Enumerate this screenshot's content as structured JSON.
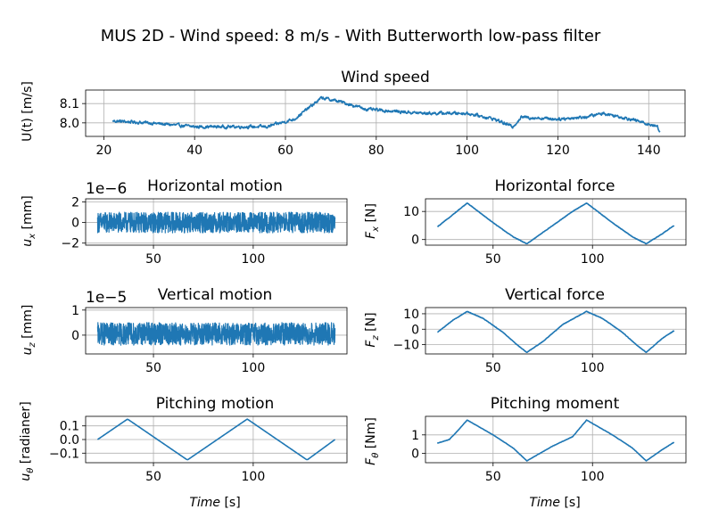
{
  "figure_title": "MUS 2D - Wind speed: 8 m/s - With Butterworth low-pass filter",
  "colors": {
    "series": "#1f77b4",
    "grid": "#b0b0b0"
  },
  "chart_data": [
    {
      "id": "wind",
      "type": "line",
      "title": "Wind speed",
      "xlabel": "",
      "ylabel": "U(t) [m/s]",
      "xlim": [
        16,
        148
      ],
      "ylim": [
        7.93,
        8.17
      ],
      "xticks": [
        20,
        40,
        60,
        80,
        100,
        120,
        140
      ],
      "yticks": [
        8.0,
        8.1
      ],
      "ytick_labels": [
        "8.0",
        "8.1"
      ],
      "grid": true,
      "x_range": [
        22,
        142.5
      ],
      "noise_amplitude": 0.014,
      "key_points": [
        [
          22,
          8.01
        ],
        [
          30,
          8.0
        ],
        [
          40,
          7.98
        ],
        [
          50,
          7.98
        ],
        [
          56,
          7.98
        ],
        [
          62,
          8.02
        ],
        [
          68,
          8.13
        ],
        [
          72,
          8.11
        ],
        [
          78,
          8.07
        ],
        [
          90,
          8.05
        ],
        [
          100,
          8.05
        ],
        [
          106,
          8.02
        ],
        [
          110,
          7.98
        ],
        [
          112,
          8.03
        ],
        [
          120,
          8.02
        ],
        [
          126,
          8.03
        ],
        [
          130,
          8.05
        ],
        [
          136,
          8.02
        ],
        [
          142,
          7.98
        ],
        [
          142.5,
          7.95
        ]
      ]
    },
    {
      "id": "ux",
      "type": "line",
      "title": "Horizontal motion",
      "scale_note": "1e−6",
      "xlabel": "",
      "ylabel": "u_x [mm]",
      "xlim": [
        16,
        147
      ],
      "ylim": [
        -2.2,
        2.3
      ],
      "xticks": [
        50,
        100
      ],
      "yticks": [
        -2,
        0,
        2
      ],
      "ytick_labels": [
        "−2",
        "0",
        "2"
      ],
      "grid": true,
      "x_range": [
        22,
        141
      ],
      "noise_amplitude": 1.0,
      "key_points": [
        [
          22,
          0
        ],
        [
          141,
          0
        ]
      ]
    },
    {
      "id": "fx",
      "type": "line",
      "title": "Horizontal force",
      "xlabel": "",
      "ylabel": "F_x [N]",
      "xlim": [
        16,
        147
      ],
      "ylim": [
        -2,
        14.5
      ],
      "xticks": [
        50,
        100
      ],
      "yticks": [
        0,
        10
      ],
      "ytick_labels": [
        "0",
        "10"
      ],
      "grid": true,
      "x_range": [
        22,
        141
      ],
      "noise_amplitude": 0.15,
      "key_points": [
        [
          22,
          4.5
        ],
        [
          30,
          9
        ],
        [
          37,
          13
        ],
        [
          50,
          6
        ],
        [
          60,
          1
        ],
        [
          67,
          -1.5
        ],
        [
          80,
          5
        ],
        [
          90,
          10
        ],
        [
          97,
          13
        ],
        [
          110,
          6
        ],
        [
          120,
          1
        ],
        [
          127,
          -1.5
        ],
        [
          135,
          2
        ],
        [
          141,
          5
        ]
      ]
    },
    {
      "id": "uz",
      "type": "line",
      "title": "Vertical motion",
      "scale_note": "1e−5",
      "xlabel": "",
      "ylabel": "u_z [mm]",
      "xlim": [
        16,
        147
      ],
      "ylim": [
        -0.75,
        1.1
      ],
      "xticks": [
        50,
        100
      ],
      "yticks": [
        0,
        1
      ],
      "ytick_labels": [
        "0",
        "1"
      ],
      "grid": true,
      "x_range": [
        22,
        141
      ],
      "noise_amplitude": 0.45,
      "key_points": [
        [
          22,
          0.05
        ],
        [
          141,
          0.05
        ]
      ]
    },
    {
      "id": "fz",
      "type": "line",
      "title": "Vertical force",
      "xlabel": "",
      "ylabel": "F_z [N]",
      "xlim": [
        16,
        147
      ],
      "ylim": [
        -16,
        14
      ],
      "xticks": [
        50,
        100
      ],
      "yticks": [
        -10,
        0,
        10
      ],
      "ytick_labels": [
        "−10",
        "0",
        "10"
      ],
      "grid": true,
      "x_range": [
        22,
        141
      ],
      "noise_amplitude": 0.25,
      "key_points": [
        [
          22,
          -2
        ],
        [
          30,
          6
        ],
        [
          37,
          11.5
        ],
        [
          45,
          7
        ],
        [
          55,
          -2
        ],
        [
          62,
          -10
        ],
        [
          67,
          -15
        ],
        [
          75,
          -8
        ],
        [
          85,
          3
        ],
        [
          97,
          11.5
        ],
        [
          105,
          7
        ],
        [
          115,
          -2
        ],
        [
          122,
          -10
        ],
        [
          127,
          -15
        ],
        [
          135,
          -6
        ],
        [
          141,
          -1
        ]
      ]
    },
    {
      "id": "utheta",
      "type": "line",
      "title": "Pitching motion",
      "xlabel": "Time [s]",
      "ylabel": "u_θ [radianer]",
      "xlim": [
        16,
        147
      ],
      "ylim": [
        -0.17,
        0.17
      ],
      "xticks": [
        50,
        100
      ],
      "yticks": [
        -0.1,
        0.0,
        0.1
      ],
      "ytick_labels": [
        "−0.1",
        "0.0",
        "0.1"
      ],
      "grid": true,
      "x_range": [
        22,
        141
      ],
      "noise_amplitude": 0.0,
      "key_points": [
        [
          22,
          0.0
        ],
        [
          37,
          0.15
        ],
        [
          67,
          -0.15
        ],
        [
          97,
          0.15
        ],
        [
          127,
          -0.15
        ],
        [
          141,
          0.0
        ]
      ]
    },
    {
      "id": "ftheta",
      "type": "line",
      "title": "Pitching moment",
      "xlabel": "Time [s]",
      "ylabel": "F_θ [Nm]",
      "xlim": [
        16,
        147
      ],
      "ylim": [
        -0.5,
        2.0
      ],
      "xticks": [
        50,
        100
      ],
      "yticks": [
        0,
        1
      ],
      "ytick_labels": [
        "0",
        "1"
      ],
      "grid": true,
      "x_range": [
        22,
        141
      ],
      "noise_amplitude": 0.015,
      "key_points": [
        [
          22,
          0.55
        ],
        [
          28,
          0.75
        ],
        [
          32,
          1.2
        ],
        [
          37,
          1.8
        ],
        [
          50,
          1.0
        ],
        [
          60,
          0.3
        ],
        [
          67,
          -0.4
        ],
        [
          80,
          0.4
        ],
        [
          90,
          0.9
        ],
        [
          97,
          1.8
        ],
        [
          110,
          1.0
        ],
        [
          120,
          0.3
        ],
        [
          127,
          -0.4
        ],
        [
          135,
          0.2
        ],
        [
          141,
          0.6
        ]
      ]
    }
  ]
}
